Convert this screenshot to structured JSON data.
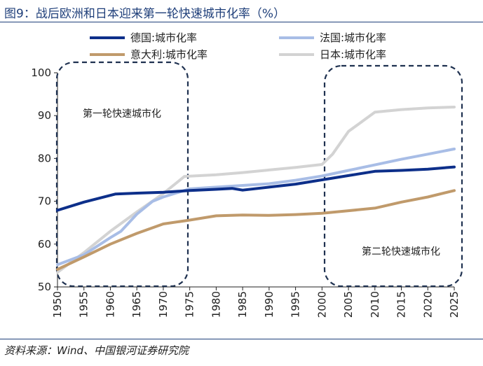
{
  "figure": {
    "title": "图9：战后欧洲和日本迎来第一轮快速城市化率（%）",
    "source": "资料来源：Wind、中国银河证券研究院"
  },
  "chart_data": {
    "type": "line",
    "title": "图9：战后欧洲和日本迎来第一轮快速城市化率（%）",
    "xlabel": "",
    "ylabel": "",
    "xlim": [
      1950,
      2025
    ],
    "ylim": [
      50,
      100
    ],
    "grid": false,
    "legend_position": "top",
    "x_ticks": [
      "1950",
      "1955",
      "1960",
      "1965",
      "1970",
      "1975",
      "1980",
      "1985",
      "1990",
      "1995",
      "2000",
      "2005",
      "2010",
      "2015",
      "2020",
      "2025"
    ],
    "y_ticks": [
      "50",
      "60",
      "70",
      "80",
      "90",
      "100"
    ],
    "series": [
      {
        "name": "德国:城市化率",
        "color": "#0d2f8a",
        "x": [
          1950,
          1955,
          1961,
          1965,
          1970,
          1975,
          1980,
          1983,
          1985,
          1990,
          1995,
          2000,
          2005,
          2010,
          2015,
          2020,
          2025
        ],
        "values": [
          67.9,
          69.8,
          71.7,
          71.9,
          72.1,
          72.5,
          72.8,
          73.0,
          72.6,
          73.3,
          74.0,
          75.0,
          76.0,
          77.0,
          77.2,
          77.5,
          78.0
        ]
      },
      {
        "name": "法国:城市化率",
        "color": "#a8bde6",
        "x": [
          1950,
          1955,
          1960,
          1962,
          1965,
          1968,
          1970,
          1975,
          1980,
          1985,
          1990,
          1995,
          2000,
          2005,
          2010,
          2015,
          2020,
          2025
        ],
        "values": [
          55.2,
          57.5,
          61.5,
          63.0,
          67.0,
          70.0,
          71.0,
          72.9,
          73.3,
          73.7,
          74.1,
          74.9,
          75.9,
          77.2,
          78.5,
          79.8,
          81.0,
          82.2
        ]
      },
      {
        "name": "意大利:城市化率",
        "color": "#c09a6b",
        "x": [
          1950,
          1955,
          1960,
          1965,
          1970,
          1975,
          1980,
          1985,
          1990,
          1995,
          2000,
          2005,
          2010,
          2015,
          2020,
          2025
        ],
        "values": [
          54.1,
          57.0,
          60.0,
          62.5,
          64.7,
          65.6,
          66.6,
          66.8,
          66.7,
          66.9,
          67.2,
          67.8,
          68.4,
          69.8,
          71.0,
          72.5
        ]
      },
      {
        "name": "日本:城市化率",
        "color": "#d3d3d3",
        "x": [
          1950,
          1955,
          1960,
          1965,
          1970,
          1974,
          1980,
          1985,
          1990,
          1995,
          2000,
          2002,
          2005,
          2010,
          2015,
          2020,
          2025
        ],
        "values": [
          53.4,
          58.0,
          63.0,
          67.5,
          71.8,
          75.8,
          76.2,
          76.7,
          77.3,
          77.9,
          78.6,
          81.0,
          86.3,
          90.8,
          91.4,
          91.8,
          92.0
        ]
      }
    ],
    "annotations": [
      {
        "text": "第一轮快速城市化",
        "x_range": [
          1950,
          1975
        ],
        "y_range": [
          50,
          100
        ]
      },
      {
        "text": "第二轮快速城市化",
        "x_range": [
          2000,
          2025
        ],
        "y_range": [
          50,
          98
        ]
      }
    ]
  }
}
